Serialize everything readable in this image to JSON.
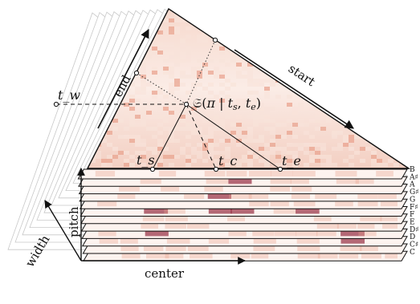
{
  "axes": {
    "end": "end",
    "start": "start",
    "pitch": "pitch",
    "width": "width",
    "center": "center"
  },
  "points": {
    "t_w": "t_w",
    "t_s": "t_s",
    "t_c": "t_c",
    "t_e": "t_e"
  },
  "formula": {
    "prefix": "𝔖(",
    "pi": "π",
    "bar": " | ",
    "t": "t",
    "s": "s",
    "comma": ", ",
    "e": "e",
    "suffix": ")"
  },
  "pitch_classes": [
    "B",
    "A♯",
    "A",
    "G♯",
    "G",
    "F♯",
    "F",
    "E",
    "D♯",
    "D",
    "C♯",
    "C"
  ],
  "colors": {
    "heat_light": "#f8e3da",
    "heat_mid": "#e9a38f",
    "heat_dark": "#9b3a4c",
    "frame": "#111111",
    "ghost": "#c8c8c8"
  }
}
